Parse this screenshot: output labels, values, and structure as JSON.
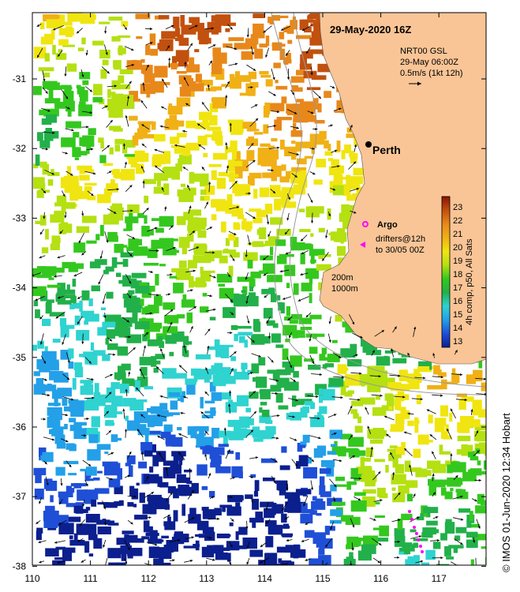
{
  "map": {
    "title": "29-May-2020 16Z",
    "lon_ticks": [
      "110",
      "111",
      "112",
      "113",
      "114",
      "115",
      "116",
      "117"
    ],
    "lat_ticks": [
      "-31",
      "-32",
      "-33",
      "-34",
      "-35",
      "-36",
      "-37",
      "-38"
    ],
    "current_legend": {
      "line1": "NRT00 GSL",
      "line2": "29-May 06:00Z",
      "line3": "0.5m/s (1kt 12h)"
    },
    "places": {
      "perth": "Perth",
      "argo": "Argo"
    },
    "drifters": {
      "line1": "drifters@12h",
      "line2": "to 30/05 00Z"
    },
    "isobaths": {
      "shallow": "200m",
      "deep": "1000m"
    },
    "colorbar": {
      "label": "4h comp, p50, All Sats",
      "ticks": [
        "13",
        "14",
        "15",
        "16",
        "17",
        "18",
        "19",
        "20",
        "21",
        "22",
        "23"
      ],
      "colors": [
        "#0b1f8e",
        "#1f4fd6",
        "#23a0e8",
        "#2fd3d0",
        "#22b04a",
        "#34c81f",
        "#b5e012",
        "#f0e510",
        "#f0b016",
        "#e8881a",
        "#c2500e",
        "#8b1208"
      ]
    },
    "credit": "© IMOS 01-Jun-2020 12:34 Hobart",
    "colors": {
      "land": "#f9c596",
      "isobath": "#9a9a9a",
      "argo": "#ff00ff"
    }
  }
}
